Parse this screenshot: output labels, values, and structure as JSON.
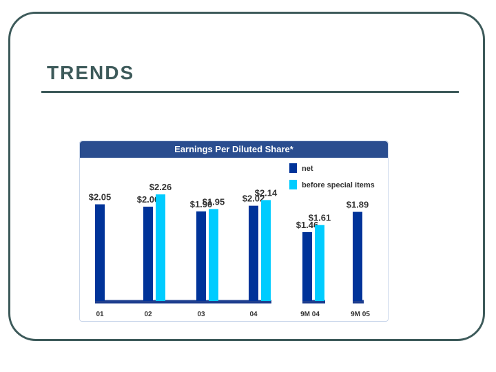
{
  "slide": {
    "title": "TRENDS"
  },
  "colors": {
    "frame": "#3d5a5a",
    "header_bg": "#2a4d8f",
    "net": "#003399",
    "before_special": "#00ccff",
    "baseline": "#1f3f8f"
  },
  "chart_data": {
    "type": "bar",
    "title": "Earnings Per Diluted Share*",
    "categories": [
      "01",
      "02",
      "03",
      "04",
      "9M 04",
      "9M 05"
    ],
    "series": [
      {
        "name": "net",
        "values": [
          2.05,
          2.0,
          1.9,
          2.02,
          1.46,
          1.89
        ],
        "labels": [
          "$2.05",
          "$2.00",
          "$1.90",
          "$2.02",
          "$1.46",
          "$1.89"
        ]
      },
      {
        "name": "before special items",
        "values": [
          null,
          2.26,
          1.95,
          2.14,
          1.61,
          null
        ],
        "labels": [
          "",
          "$2.26",
          "$1.95",
          "$2.14",
          "$1.61",
          ""
        ]
      }
    ],
    "ylim": [
      0,
      2.5
    ],
    "grid": false,
    "legend": "top-right"
  }
}
